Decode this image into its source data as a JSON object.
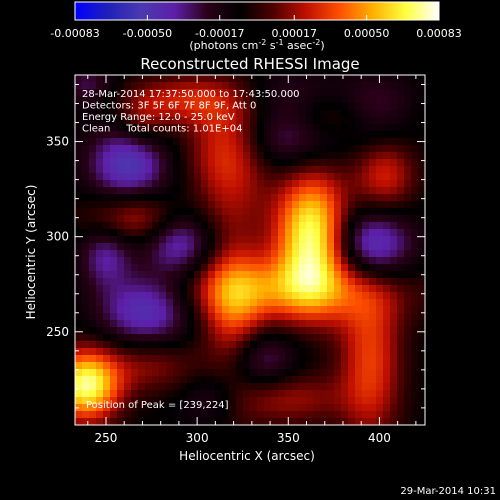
{
  "chart_data": {
    "type": "heatmap",
    "title": "Reconstructed RHESSI Image",
    "xlabel": "Heliocentric X (arcsec)",
    "ylabel": "Heliocentric Y (arcsec)",
    "xlim": [
      233,
      425
    ],
    "ylim": [
      201,
      385
    ],
    "x_ticks": [
      250,
      300,
      350,
      400
    ],
    "y_ticks": [
      250,
      300,
      350
    ],
    "colorbar": {
      "range": [
        -0.00083,
        0.00083
      ],
      "tick_values": [
        -0.00083,
        -0.0005,
        -0.00017,
        0.00017,
        0.0005,
        0.00083
      ],
      "tick_labels": [
        "-0.00083",
        "-0.00050",
        "-0.00017",
        "0.00017",
        "0.00050",
        "0.00083"
      ],
      "units_main": "(photons cm",
      "units_sup1": "-2",
      "units_mid1": " s",
      "units_sup2": "-1",
      "units_mid2": " asec",
      "units_sup3": "-2",
      "units_end": ")",
      "colors": [
        "#0000ff",
        "#2020b8",
        "#4a3ab0",
        "#5d1fa8",
        "#2a0018",
        "#000000",
        "#500000",
        "#c01000",
        "#ff5000",
        "#ffb000",
        "#ffff40",
        "#ffffff"
      ]
    },
    "annotations": [
      "28-Mar-2014 17:37:50.000 to 17:43:50.000",
      "Detectors: 3F 5F 6F 7F 8F 9F, Att 0",
      "Energy Range: 12.0 - 25.0 keV",
      "Clean     Total counts: 1.01E+04"
    ],
    "peak_label": "Position of Peak = [239,224]",
    "sources": [
      {
        "x": 363,
        "y": 300,
        "sx": 14,
        "sy": 24,
        "amp": 0.00083
      },
      {
        "x": 239,
        "y": 222,
        "sx": 13,
        "sy": 13,
        "amp": 0.00082
      },
      {
        "x": 348,
        "y": 272,
        "sx": 45,
        "sy": 12,
        "amp": 0.00042
      },
      {
        "x": 320,
        "y": 258,
        "sx": 12,
        "sy": 32,
        "amp": 0.00038
      },
      {
        "x": 395,
        "y": 235,
        "sx": 12,
        "sy": 30,
        "amp": 0.0004
      },
      {
        "x": 272,
        "y": 310,
        "sx": 22,
        "sy": 10,
        "amp": 0.00038
      },
      {
        "x": 318,
        "y": 345,
        "sx": 16,
        "sy": 22,
        "amp": 0.00042
      },
      {
        "x": 292,
        "y": 372,
        "sx": 22,
        "sy": 9,
        "amp": 0.0003
      },
      {
        "x": 403,
        "y": 332,
        "sx": 12,
        "sy": 14,
        "amp": 0.00034
      },
      {
        "x": 372,
        "y": 363,
        "sx": 30,
        "sy": 9,
        "amp": 0.00026
      },
      {
        "x": 270,
        "y": 360,
        "sx": 10,
        "sy": 10,
        "amp": 0.0002
      },
      {
        "x": 350,
        "y": 215,
        "sx": 22,
        "sy": 10,
        "amp": 0.00026
      },
      {
        "x": 275,
        "y": 232,
        "sx": 18,
        "sy": 10,
        "amp": 0.00022
      },
      {
        "x": 262,
        "y": 338,
        "sx": 15,
        "sy": 14,
        "amp": -0.00044
      },
      {
        "x": 290,
        "y": 300,
        "sx": 14,
        "sy": 14,
        "amp": -0.00044
      },
      {
        "x": 250,
        "y": 290,
        "sx": 10,
        "sy": 12,
        "amp": -0.0003
      },
      {
        "x": 272,
        "y": 262,
        "sx": 18,
        "sy": 13,
        "amp": -0.00044
      },
      {
        "x": 348,
        "y": 358,
        "sx": 20,
        "sy": 16,
        "amp": -0.0004
      },
      {
        "x": 395,
        "y": 295,
        "sx": 16,
        "sy": 14,
        "amp": -0.00048
      },
      {
        "x": 398,
        "y": 365,
        "sx": 15,
        "sy": 12,
        "amp": -0.0003
      },
      {
        "x": 333,
        "y": 235,
        "sx": 14,
        "sy": 12,
        "amp": -0.00032
      },
      {
        "x": 310,
        "y": 215,
        "sx": 12,
        "sy": 10,
        "amp": -0.0002
      },
      {
        "x": 240,
        "y": 380,
        "sx": 10,
        "sy": 8,
        "amp": -0.0002
      }
    ],
    "background_level": -8e-05
  },
  "footer": {
    "timestamp": "29-Mar-2014 10:31"
  }
}
